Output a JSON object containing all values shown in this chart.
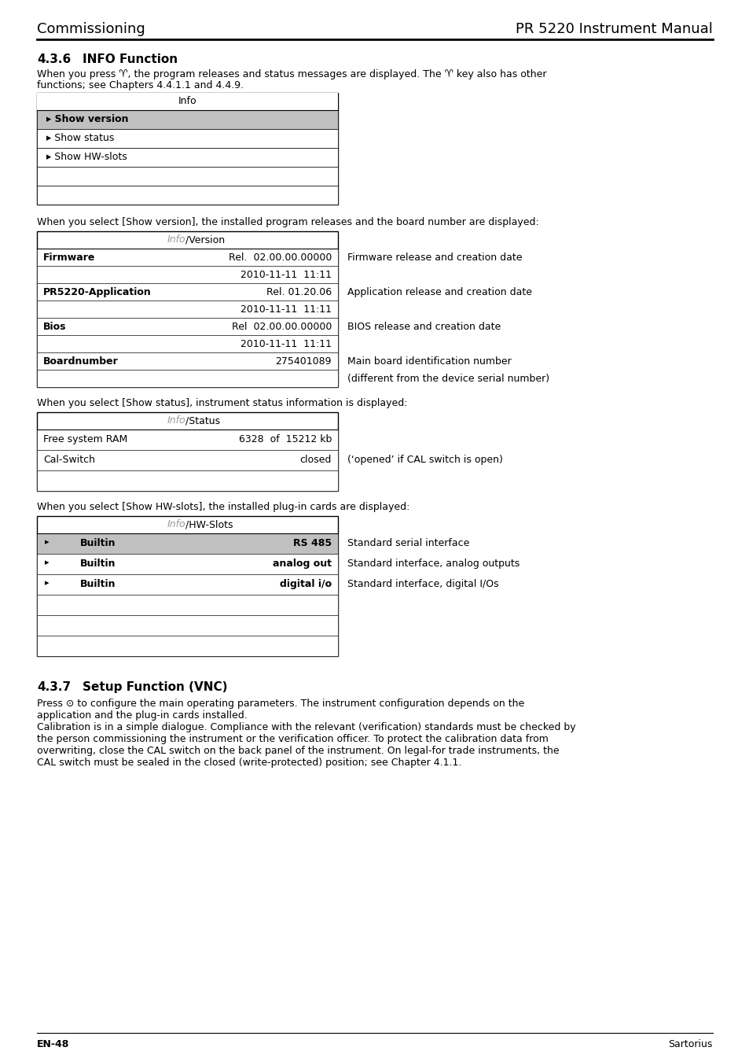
{
  "page_title_left": "Commissioning",
  "page_title_right": "PR 5220 Instrument Manual",
  "section_436_title": "4.3.6",
  "section_436_subtitle": "INFO Function",
  "section_436_para1a": "When you press",
  "section_436_para1b": ", the program releases and status messages are displayed. The",
  "section_436_para1c": "key also has other",
  "section_436_para1d": "functions; see Chapters 4.4.1.1 and 4.4.9.",
  "info_table_header": "Info",
  "info_table_rows": [
    {
      "selected": true,
      "text": "Show version"
    },
    {
      "selected": false,
      "text": "Show status"
    },
    {
      "selected": false,
      "text": "Show HW-slots"
    }
  ],
  "version_para": "When you select [Show version], the installed program releases and the board number are displayed:",
  "version_table_rows": [
    {
      "label": "Firmware",
      "value": "Rel.  02.00.00.00000",
      "desc": "Firmware release and creation date",
      "bold_label": true
    },
    {
      "label": "",
      "value": "2010-11-11  11:11",
      "desc": "",
      "bold_label": false
    },
    {
      "label": "PR5220-Application",
      "value": "Rel. 01.20.06",
      "desc": "Application release and creation date",
      "bold_label": true
    },
    {
      "label": "",
      "value": "2010-11-11  11:11",
      "desc": "",
      "bold_label": false
    },
    {
      "label": "Bios",
      "value": "Rel  02.00.00.00000",
      "desc": "BIOS release and creation date",
      "bold_label": true
    },
    {
      "label": "",
      "value": "2010-11-11  11:11",
      "desc": "",
      "bold_label": false
    },
    {
      "label": "Boardnumber",
      "value": "275401089",
      "desc": "Main board identification number",
      "bold_label": true
    },
    {
      "label": "",
      "value": "",
      "desc": "(different from the device serial number)",
      "bold_label": false
    }
  ],
  "status_para": "When you select [Show status], instrument status information is displayed:",
  "status_table_rows": [
    {
      "label": "Free system RAM",
      "value": "6328  of  15212 kb",
      "desc": ""
    },
    {
      "label": "Cal-Switch",
      "value": "closed",
      "desc": "(‘opened’ if CAL switch is open)"
    }
  ],
  "hwslots_para": "When you select [Show HW-slots], the installed plug-in cards are displayed:",
  "hwslots_table_rows": [
    {
      "selected": true,
      "label": "Builtin",
      "value": "RS 485",
      "desc": "Standard serial interface"
    },
    {
      "selected": false,
      "label": "Builtin",
      "value": "analog out",
      "desc": "Standard interface, analog outputs"
    },
    {
      "selected": false,
      "label": "Builtin",
      "value": "digital i/o",
      "desc": "Standard interface, digital I/Os"
    }
  ],
  "section_437_title": "4.3.7",
  "section_437_subtitle": "Setup Function (VNC)",
  "section_437_para1": "Press ⊙ to configure the main operating parameters. The instrument configuration depends on the\napplication and the plug-in cards installed.",
  "section_437_para2": "Calibration is in a simple dialogue. Compliance with the relevant (verification) standards must be checked by\nthe person commissioning the instrument or the verification officer. To protect the calibration data from\noverwriting, close the CAL switch on the back panel of the instrument. On legal-for trade instruments, the\nCAL switch must be sealed in the closed (write-protected) position; see Chapter 4.1.1.",
  "footer_left": "EN-48",
  "footer_right": "Sartorius",
  "bg_color": "#ffffff",
  "text_color": "#000000",
  "gray_color": "#999999",
  "selected_row_color": "#c0c0c0"
}
